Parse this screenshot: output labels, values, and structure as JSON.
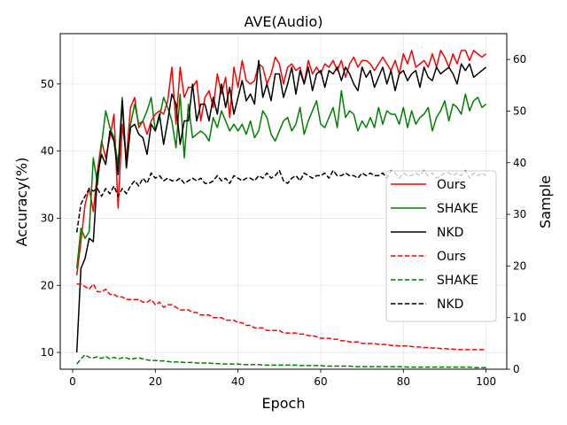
{
  "chart_data": {
    "type": "line",
    "title": "AVE(Audio)",
    "xlabel": "Epoch",
    "ylabel": "Accuracy(%)",
    "ylabel_right": "Sample",
    "xlim": [
      -3,
      105
    ],
    "ylim": [
      7.5,
      57.5
    ],
    "ylim_right": [
      0,
      65
    ],
    "xticks": [
      0,
      20,
      40,
      60,
      80,
      100
    ],
    "yticks": [
      10,
      20,
      30,
      40,
      50
    ],
    "yticks_right": [
      0,
      10,
      20,
      30,
      40,
      50,
      60
    ],
    "grid": true,
    "legend_position": "center-right",
    "x": [
      1,
      2,
      3,
      4,
      5,
      6,
      7,
      8,
      9,
      10,
      11,
      12,
      13,
      14,
      15,
      16,
      17,
      18,
      19,
      20,
      21,
      22,
      23,
      24,
      25,
      26,
      27,
      28,
      29,
      30,
      31,
      32,
      33,
      34,
      35,
      36,
      37,
      38,
      39,
      40,
      41,
      42,
      43,
      44,
      45,
      46,
      47,
      48,
      49,
      50,
      51,
      52,
      53,
      54,
      55,
      56,
      57,
      58,
      59,
      60,
      61,
      62,
      63,
      64,
      65,
      66,
      67,
      68,
      69,
      70,
      71,
      72,
      73,
      74,
      75,
      76,
      77,
      78,
      79,
      80,
      81,
      82,
      83,
      84,
      85,
      86,
      87,
      88,
      89,
      90,
      91,
      92,
      93,
      94,
      95,
      96,
      97,
      98,
      99,
      100
    ],
    "series": [
      {
        "name": "Ours",
        "color": "#ff0000",
        "linestyle": "solid",
        "axis": "left",
        "values": [
          21.5,
          26.5,
          32.0,
          34.5,
          31.0,
          37.0,
          41.5,
          39.0,
          42.0,
          45.5,
          31.5,
          44.0,
          39.0,
          46.5,
          48.0,
          43.5,
          44.5,
          42.5,
          44.5,
          45.5,
          46.0,
          45.5,
          47.5,
          52.5,
          44.0,
          52.5,
          48.0,
          49.5,
          49.5,
          50.5,
          44.5,
          48.0,
          49.0,
          46.5,
          51.5,
          48.5,
          51.0,
          45.0,
          52.5,
          49.5,
          53.5,
          50.5,
          50.0,
          50.5,
          53.0,
          52.5,
          50.0,
          51.5,
          54.0,
          53.0,
          50.0,
          52.5,
          53.0,
          52.0,
          52.5,
          50.0,
          53.5,
          51.5,
          52.5,
          51.5,
          53.0,
          52.5,
          53.5,
          52.0,
          53.5,
          51.0,
          53.0,
          54.0,
          52.5,
          53.5,
          53.5,
          53.0,
          52.0,
          53.0,
          54.0,
          53.0,
          52.0,
          53.5,
          51.5,
          54.5,
          53.0,
          55.0,
          52.5,
          53.0,
          53.5,
          52.5,
          54.5,
          52.5,
          55.0,
          54.0,
          52.5,
          54.5,
          53.0,
          55.0,
          55.0,
          53.5,
          55.0,
          54.5,
          54.0,
          54.5
        ]
      },
      {
        "name": "SHAKE",
        "color": "#008000",
        "linestyle": "solid",
        "axis": "left",
        "values": [
          22.5,
          28.5,
          27.0,
          28.0,
          39.0,
          35.0,
          41.0,
          46.0,
          43.5,
          42.0,
          38.0,
          48.0,
          37.5,
          44.0,
          47.0,
          44.0,
          44.5,
          46.0,
          48.0,
          43.0,
          45.0,
          48.0,
          46.5,
          44.5,
          40.5,
          48.5,
          39.0,
          47.0,
          42.0,
          42.5,
          43.0,
          42.5,
          41.5,
          45.0,
          43.5,
          46.0,
          44.5,
          43.0,
          44.0,
          43.0,
          44.0,
          42.5,
          44.5,
          42.0,
          43.0,
          46.0,
          45.0,
          42.5,
          41.5,
          43.0,
          44.5,
          45.0,
          43.0,
          44.0,
          46.5,
          42.5,
          44.5,
          46.0,
          47.5,
          44.0,
          43.5,
          45.0,
          46.5,
          43.5,
          49.0,
          45.0,
          46.0,
          45.5,
          43.0,
          44.5,
          43.5,
          45.0,
          43.5,
          46.5,
          44.0,
          46.0,
          45.5,
          45.5,
          44.0,
          46.5,
          43.5,
          46.0,
          44.0,
          45.0,
          45.5,
          46.5,
          43.0,
          45.0,
          46.0,
          47.5,
          44.5,
          47.0,
          46.5,
          45.5,
          48.5,
          46.0,
          47.5,
          48.0,
          46.5,
          47.0
        ]
      },
      {
        "name": "NKD",
        "color": "#000000",
        "linestyle": "solid",
        "axis": "left",
        "values": [
          10.0,
          22.5,
          24.0,
          27.0,
          26.5,
          36.5,
          39.5,
          38.0,
          43.0,
          41.5,
          36.5,
          47.5,
          37.5,
          43.5,
          44.0,
          42.5,
          42.0,
          39.5,
          44.0,
          43.0,
          45.5,
          41.0,
          44.5,
          48.5,
          47.0,
          41.0,
          44.5,
          44.5,
          50.0,
          44.5,
          47.0,
          47.0,
          44.5,
          48.0,
          45.5,
          50.0,
          46.5,
          49.5,
          45.5,
          48.0,
          50.5,
          47.5,
          48.5,
          47.0,
          53.5,
          48.0,
          50.0,
          47.5,
          51.5,
          51.5,
          48.0,
          50.0,
          52.5,
          48.5,
          52.0,
          50.0,
          52.5,
          49.0,
          51.5,
          52.0,
          49.5,
          52.0,
          51.5,
          52.5,
          50.5,
          52.5,
          51.5,
          50.0,
          49.0,
          52.5,
          51.0,
          52.0,
          49.5,
          51.0,
          52.5,
          50.0,
          52.0,
          49.0,
          51.5,
          52.0,
          50.5,
          51.5,
          52.0,
          49.5,
          52.5,
          51.0,
          50.5,
          52.5,
          51.5,
          52.0,
          52.5,
          51.5,
          50.0,
          53.0,
          52.0,
          53.0,
          51.0,
          51.5,
          52.0,
          52.5
        ]
      },
      {
        "name": "Ours",
        "color": "#ff0000",
        "linestyle": "dashed",
        "axis": "right",
        "values": [
          16.5,
          16.5,
          16.0,
          15.5,
          16.5,
          15.0,
          15.0,
          15.5,
          14.5,
          14.5,
          14.0,
          14.0,
          13.5,
          13.5,
          13.5,
          13.5,
          13.0,
          13.0,
          13.5,
          12.5,
          13.0,
          12.0,
          12.5,
          12.5,
          12.0,
          11.5,
          11.5,
          11.5,
          11.0,
          11.0,
          10.5,
          10.5,
          10.5,
          10.0,
          10.0,
          10.0,
          9.5,
          9.5,
          9.5,
          9.0,
          9.0,
          8.5,
          8.5,
          8.0,
          8.0,
          8.0,
          7.5,
          7.5,
          7.5,
          7.5,
          7.0,
          7.0,
          7.0,
          7.0,
          6.8,
          6.8,
          6.5,
          6.5,
          6.3,
          6.0,
          6.0,
          6.0,
          5.8,
          5.8,
          5.5,
          5.5,
          5.3,
          5.3,
          5.3,
          5.0,
          5.0,
          5.0,
          5.0,
          4.8,
          4.8,
          4.8,
          4.6,
          4.6,
          4.5,
          4.5,
          4.5,
          4.4,
          4.3,
          4.3,
          4.2,
          4.2,
          4.1,
          4.1,
          4.0,
          4.0,
          3.9,
          3.9,
          3.8,
          3.8,
          3.8,
          3.8,
          3.8,
          3.8,
          3.8,
          3.8
        ]
      },
      {
        "name": "SHAKE",
        "color": "#008000",
        "linestyle": "dashed",
        "axis": "right",
        "values": [
          1.0,
          2.0,
          2.8,
          2.3,
          2.2,
          2.4,
          2.1,
          2.5,
          2.0,
          2.3,
          2.0,
          2.2,
          2.2,
          1.9,
          2.1,
          2.2,
          2.0,
          1.8,
          1.7,
          1.7,
          1.6,
          1.6,
          1.5,
          1.4,
          1.4,
          1.4,
          1.3,
          1.3,
          1.3,
          1.2,
          1.2,
          1.2,
          1.2,
          1.1,
          1.1,
          1.0,
          1.0,
          1.0,
          1.0,
          1.0,
          0.9,
          0.9,
          0.9,
          0.9,
          0.9,
          0.8,
          0.8,
          0.8,
          0.8,
          0.8,
          0.8,
          0.8,
          0.8,
          0.8,
          0.7,
          0.7,
          0.7,
          0.7,
          0.7,
          0.7,
          0.6,
          0.6,
          0.6,
          0.6,
          0.6,
          0.6,
          0.6,
          0.5,
          0.5,
          0.5,
          0.5,
          0.5,
          0.5,
          0.5,
          0.5,
          0.5,
          0.5,
          0.5,
          0.5,
          0.5,
          0.4,
          0.4,
          0.4,
          0.4,
          0.4,
          0.4,
          0.4,
          0.4,
          0.4,
          0.4,
          0.4,
          0.4,
          0.4,
          0.4,
          0.4,
          0.4,
          0.3,
          0.3,
          0.3,
          0.3
        ]
      },
      {
        "name": "NKD",
        "color": "#000000",
        "linestyle": "dashed",
        "axis": "right",
        "values": [
          26.5,
          32.0,
          33.5,
          35.0,
          34.5,
          35.0,
          33.5,
          35.0,
          34.0,
          35.5,
          33.5,
          35.0,
          34.0,
          35.5,
          36.5,
          35.5,
          37.0,
          36.0,
          38.0,
          37.0,
          37.5,
          36.5,
          37.0,
          36.5,
          36.5,
          37.0,
          36.0,
          36.5,
          37.0,
          36.5,
          37.0,
          36.0,
          36.0,
          36.5,
          37.5,
          36.5,
          37.0,
          36.0,
          37.5,
          37.0,
          36.5,
          37.0,
          37.0,
          36.5,
          37.5,
          37.0,
          38.0,
          37.0,
          37.5,
          38.5,
          36.5,
          36.0,
          37.0,
          37.5,
          36.5,
          38.0,
          37.5,
          37.0,
          37.5,
          37.5,
          38.0,
          37.0,
          38.5,
          37.5,
          37.5,
          38.0,
          37.5,
          37.5,
          37.0,
          38.0,
          37.5,
          38.0,
          37.5,
          37.5,
          38.0,
          37.0,
          38.5,
          38.0,
          37.0,
          38.0,
          37.5,
          37.5,
          38.0,
          37.5,
          38.5,
          37.5,
          38.0,
          37.0,
          37.5,
          38.0,
          38.0,
          37.5,
          38.0,
          37.5,
          38.5,
          37.0,
          38.0,
          37.5,
          38.0,
          37.5
        ]
      }
    ]
  }
}
